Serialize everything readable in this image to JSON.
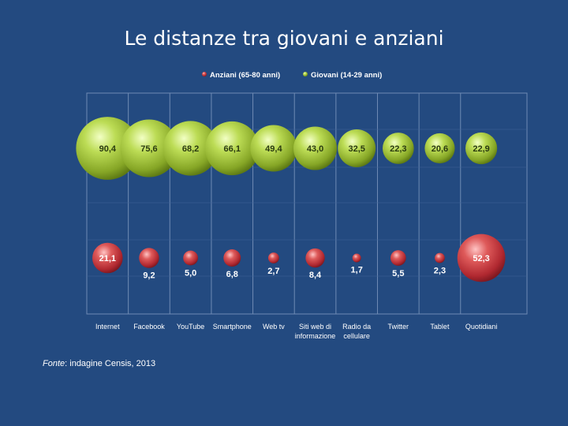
{
  "title": "Le distanze tra giovani e anziani",
  "source": {
    "label": "Fonte",
    "text": ": indagine Censis, 2013"
  },
  "colors": {
    "background": "#234a80",
    "grid": "#6f8bb4",
    "giovani": "#9fc23a",
    "anziani": "#c8373c"
  },
  "chart_data": {
    "type": "scatter",
    "subtype": "bubble",
    "categories": [
      "Internet",
      "Facebook",
      "YouTube",
      "Smartphone",
      "Web tv",
      "Siti web di informazione",
      "Radio da cellulare",
      "Twitter",
      "Tablet",
      "Quotidiani"
    ],
    "category_lines": [
      [
        "Internet"
      ],
      [
        "Facebook"
      ],
      [
        "YouTube"
      ],
      [
        "Smartphone"
      ],
      [
        "Web tv"
      ],
      [
        "Siti web di",
        "informazione"
      ],
      [
        "Radio da",
        "cellulare"
      ],
      [
        "Twitter"
      ],
      [
        "Tablet"
      ],
      [
        "Quotidiani"
      ]
    ],
    "legend_position": "top-center",
    "grid": true,
    "series": [
      {
        "name": "Anziani (65-80 anni)",
        "color": "#c8373c",
        "values": [
          21.1,
          9.2,
          5.0,
          6.8,
          2.7,
          8.4,
          1.7,
          5.5,
          2.3,
          52.3
        ],
        "labels": [
          "21,1",
          "9,2",
          "5,0",
          "6,8",
          "2,7",
          "8,4",
          "1,7",
          "5,5",
          "2,3",
          "52,3"
        ]
      },
      {
        "name": "Giovani (14-29 anni)",
        "color": "#9fc23a",
        "values": [
          90.4,
          75.6,
          68.2,
          66.1,
          49.4,
          43.0,
          32.5,
          22.3,
          20.6,
          22.9
        ],
        "labels": [
          "90,4",
          "75,6",
          "68,2",
          "66,1",
          "49,4",
          "43,0",
          "32,5",
          "22,3",
          "20,6",
          "22,9"
        ]
      }
    ]
  }
}
